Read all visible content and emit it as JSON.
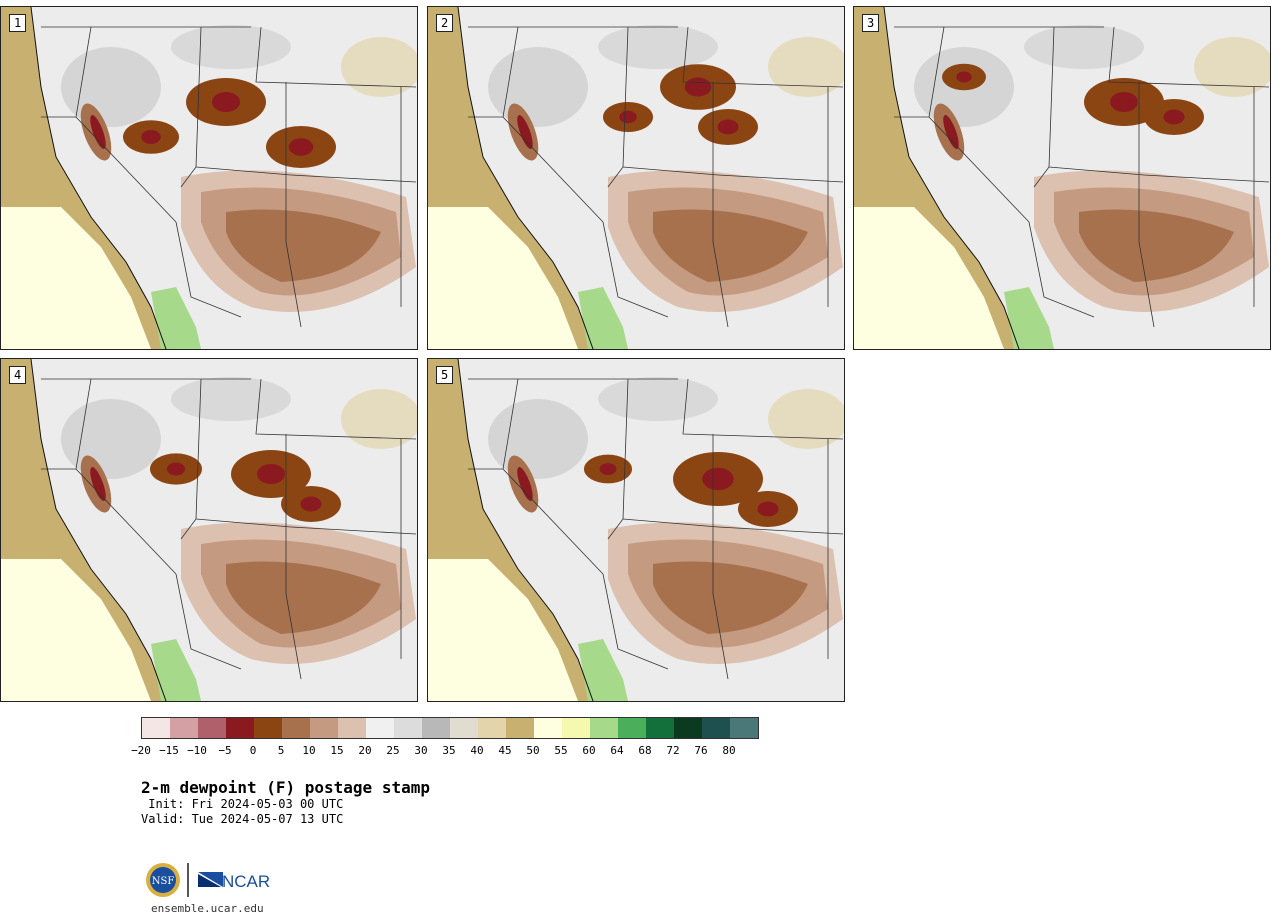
{
  "stamps": [
    {
      "label": "1",
      "hotspots": [
        [
          225,
          95,
          40
        ],
        [
          150,
          130,
          28
        ],
        [
          300,
          140,
          35
        ]
      ]
    },
    {
      "label": "2",
      "hotspots": [
        [
          270,
          80,
          38
        ],
        [
          300,
          120,
          30
        ],
        [
          200,
          110,
          25
        ]
      ]
    },
    {
      "label": "3",
      "hotspots": [
        [
          270,
          95,
          40
        ],
        [
          320,
          110,
          30
        ],
        [
          110,
          70,
          22
        ]
      ]
    },
    {
      "label": "4",
      "hotspots": [
        [
          270,
          115,
          40
        ],
        [
          310,
          145,
          30
        ],
        [
          175,
          110,
          26
        ]
      ]
    },
    {
      "label": "5",
      "hotspots": [
        [
          290,
          120,
          45
        ],
        [
          340,
          150,
          30
        ],
        [
          180,
          110,
          24
        ]
      ]
    }
  ],
  "colorbar": {
    "colors": [
      "#f5e6e6",
      "#d4a0a4",
      "#b0606a",
      "#8a1a20",
      "#8b4513",
      "#a8714e",
      "#c49a80",
      "#dcc0b0",
      "#f0f0f0",
      "#dcdcdc",
      "#b8b8b8",
      "#e0dcd0",
      "#e3d4ab",
      "#c8b070",
      "#fefee0",
      "#f5f9b0",
      "#a6d98a",
      "#4aae5a",
      "#13703a",
      "#0a3a20",
      "#1e5050",
      "#4a7878"
    ],
    "ticks": [
      "−20",
      "−15",
      "−10",
      "−5",
      "0",
      "5",
      "10",
      "15",
      "20",
      "25",
      "30",
      "35",
      "40",
      "45",
      "50",
      "55",
      "60",
      "64",
      "68",
      "72",
      "76",
      "80"
    ]
  },
  "title": "2-m dewpoint (F) postage stamp",
  "init": " Init: Fri 2024-05-03 00 UTC",
  "valid": "Valid: Tue 2024-05-07 13 UTC",
  "logos": {
    "nsf": "NSF",
    "ncar": "NCAR"
  },
  "site": "ensemble.ucar.edu"
}
